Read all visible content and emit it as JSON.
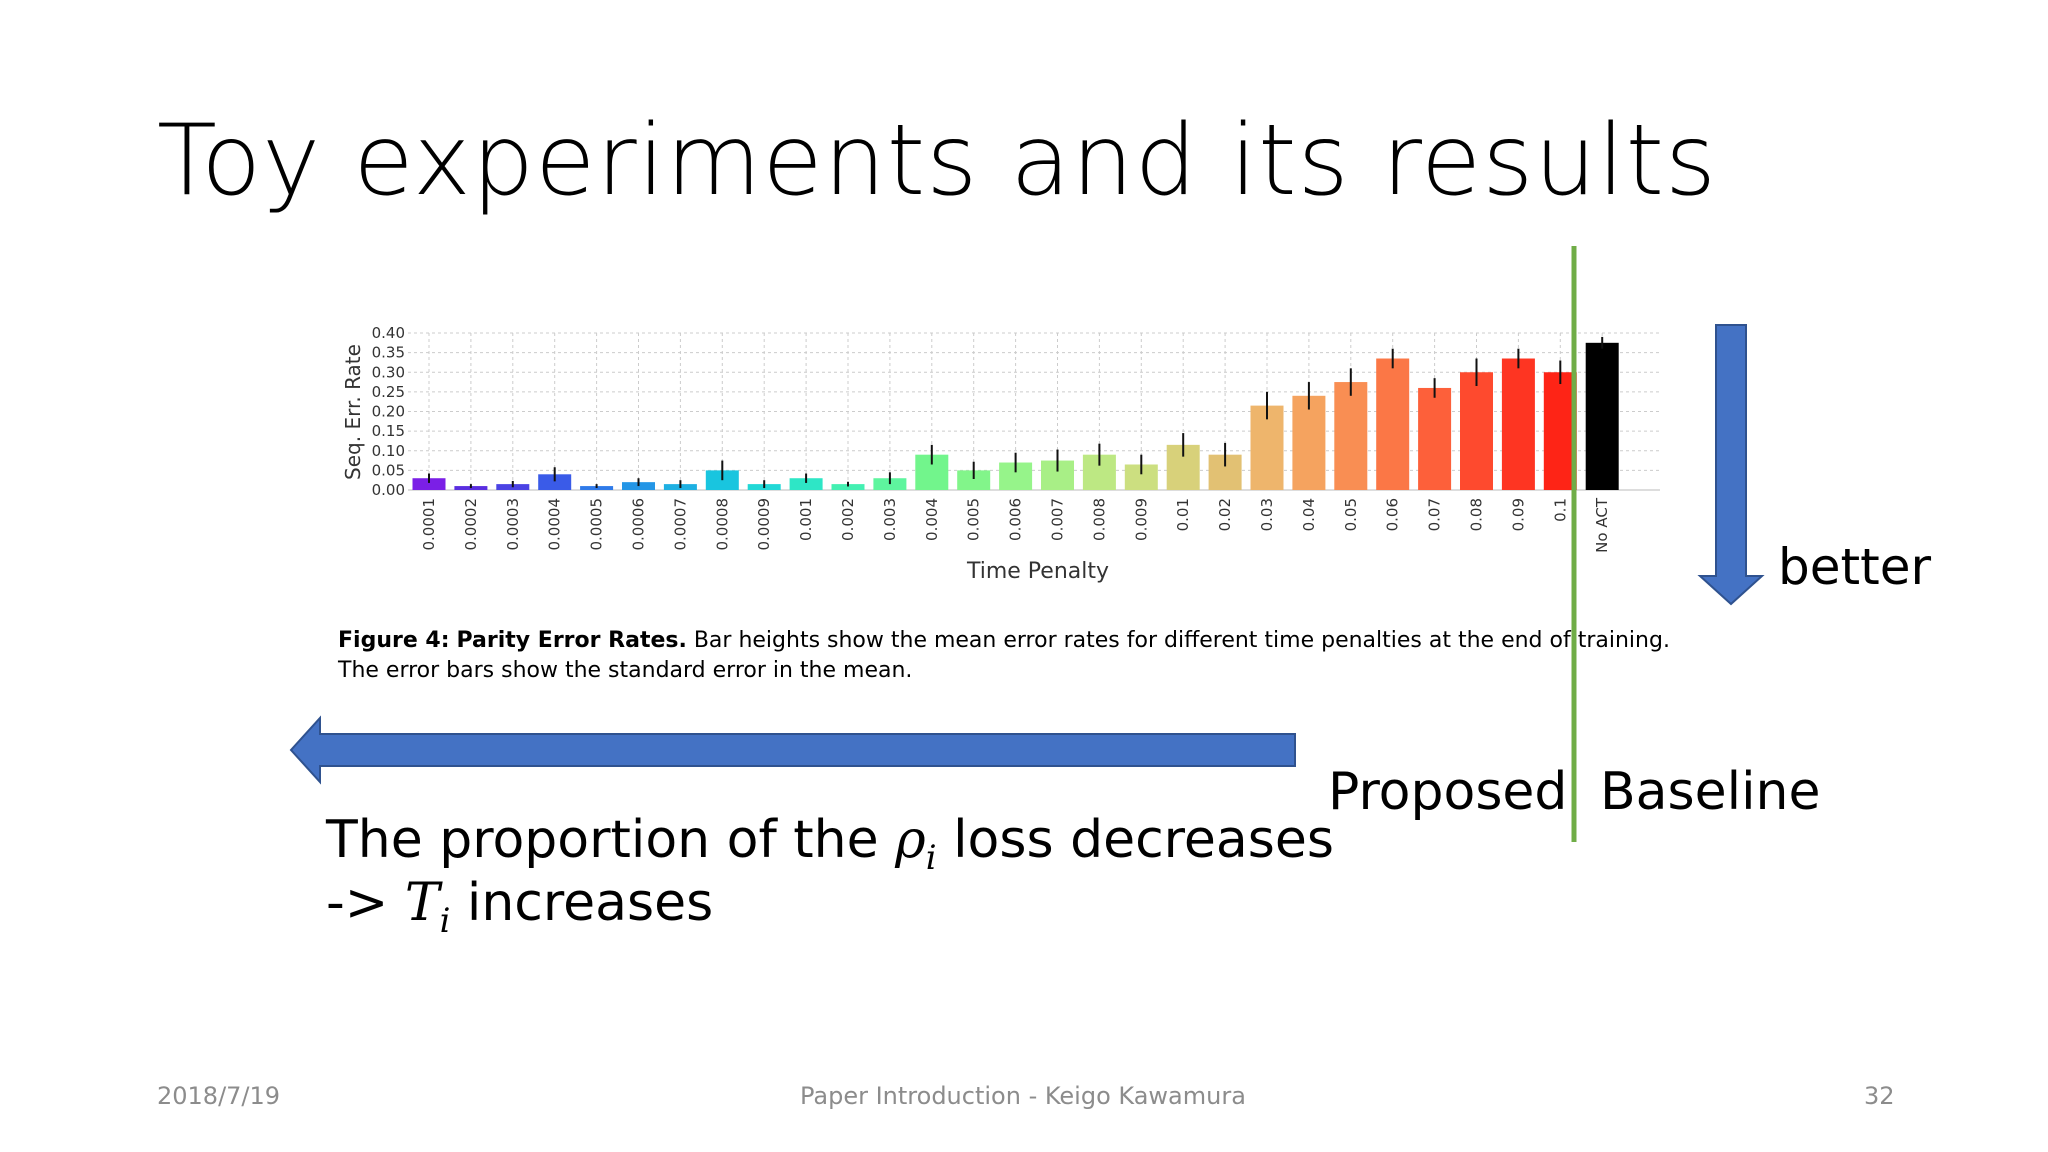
{
  "slide": {
    "title": "Toy experiments and its results",
    "caption_bold_label": "Figure 4:",
    "caption_bold_title": "Parity Error Rates.",
    "caption_text_1": "Bar heights show the mean error rates for different time penalties at the end of training.",
    "caption_text_2": "The error bars show the standard error in the mean.",
    "better_label": "better",
    "proposed_label": "Proposed",
    "baseline_label": "Baseline",
    "note_line1_prefix": "The proportion of the",
    "note_rho": "ρ",
    "note_rho_sub": "i",
    "note_line1_suffix": "loss decreases",
    "note_line2_prefix": "->",
    "note_T": "T",
    "note_T_sub": "i",
    "note_line2_suffix": "increases",
    "footer_date": "2018/7/19",
    "footer_center": "Paper Introduction - Keigo Kawamura",
    "footer_page": "32",
    "colors": {
      "arrow": "#4472c4",
      "divider": "#70ad47",
      "footer": "#8c8c8c"
    }
  },
  "chart_data": {
    "type": "bar",
    "title": "",
    "xlabel": "Time Penalty",
    "ylabel": "Seq. Err. Rate",
    "ylim": [
      0,
      0.4
    ],
    "yticks": [
      "0.00",
      "0.05",
      "0.10",
      "0.15",
      "0.20",
      "0.25",
      "0.30",
      "0.35",
      "0.40"
    ],
    "grid": true,
    "categories": [
      "0.0001",
      "0.0002",
      "0.0003",
      "0.0004",
      "0.0005",
      "0.0006",
      "0.0007",
      "0.0008",
      "0.0009",
      "0.001",
      "0.002",
      "0.003",
      "0.004",
      "0.005",
      "0.006",
      "0.007",
      "0.008",
      "0.009",
      "0.01",
      "0.02",
      "0.03",
      "0.04",
      "0.05",
      "0.06",
      "0.07",
      "0.08",
      "0.09",
      "0.1",
      "No ACT"
    ],
    "values": [
      0.03,
      0.01,
      0.015,
      0.04,
      0.01,
      0.02,
      0.015,
      0.05,
      0.015,
      0.03,
      0.015,
      0.03,
      0.09,
      0.05,
      0.07,
      0.075,
      0.09,
      0.065,
      0.115,
      0.09,
      0.215,
      0.24,
      0.275,
      0.335,
      0.26,
      0.3,
      0.335,
      0.3,
      0.375
    ],
    "errors": [
      0.012,
      0.005,
      0.008,
      0.018,
      0.005,
      0.01,
      0.01,
      0.025,
      0.01,
      0.012,
      0.006,
      0.015,
      0.025,
      0.022,
      0.025,
      0.028,
      0.028,
      0.025,
      0.03,
      0.03,
      0.035,
      0.035,
      0.035,
      0.025,
      0.025,
      0.035,
      0.025,
      0.03,
      0.015
    ],
    "colors": [
      "#7b1fe6",
      "#5a2ee0",
      "#4b43e4",
      "#3a5be8",
      "#2f7ae9",
      "#2496e6",
      "#1eb0e2",
      "#19c5df",
      "#22d8d6",
      "#2ee6c6",
      "#44f0b2",
      "#5ef59e",
      "#72f58c",
      "#82f58a",
      "#96f48a",
      "#a8ef86",
      "#bde883",
      "#ccdf80",
      "#d8d17a",
      "#e2c173",
      "#eeb56c",
      "#f5a35f",
      "#f98e53",
      "#fb7746",
      "#fd603a",
      "#fe4a2e",
      "#fe3522",
      "#fe2416",
      "#000000"
    ]
  }
}
